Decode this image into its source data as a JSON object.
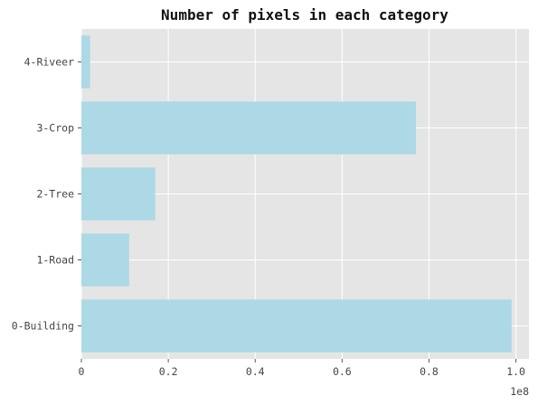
{
  "chart_data": {
    "type": "bar",
    "orientation": "horizontal",
    "title": "Number of pixels in each category",
    "xlabel": "",
    "ylabel": "",
    "categories": [
      "0-Building",
      "1-Road",
      "2-Tree",
      "3-Crop",
      "4-Riveer"
    ],
    "values": [
      99000000,
      11000000,
      17000000,
      77000000,
      2000000
    ],
    "xlim": [
      0,
      103000000
    ],
    "x_ticks": [
      0,
      20000000,
      40000000,
      60000000,
      80000000,
      100000000
    ],
    "x_tick_labels": [
      "0",
      "0.2",
      "0.4",
      "0.6",
      "0.8",
      "1.0"
    ],
    "x_offset_label": "1e8",
    "grid": true,
    "legend": "none",
    "colors": {
      "bar": "#add8e6",
      "plot_background": "#e5e5e5",
      "grid": "#ffffff"
    }
  }
}
